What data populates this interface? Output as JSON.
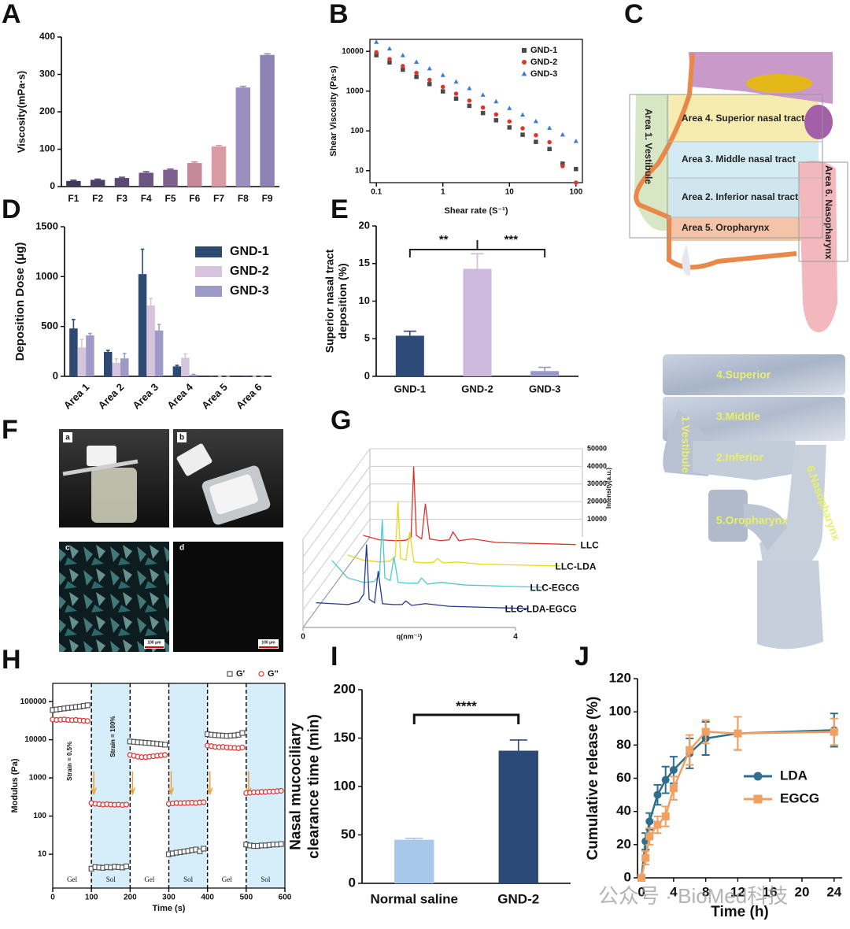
{
  "chart_data": [
    {
      "panel": "A",
      "type": "bar",
      "y_label": "Viscosity(mPa·s)",
      "categories": [
        "F1",
        "F2",
        "F3",
        "F4",
        "F5",
        "F6",
        "F7",
        "F8",
        "F9"
      ],
      "values": [
        15,
        18,
        23,
        37,
        45,
        63,
        107,
        265,
        352
      ],
      "errors": [
        2,
        2,
        2,
        3,
        2,
        3,
        3,
        3,
        3
      ],
      "colors": [
        "#3d3a5c",
        "#4b4068",
        "#5b4a74",
        "#6b5383",
        "#7f5f8e",
        "#c4889a",
        "#d99ba4",
        "#9a8fbf",
        "#8e84b4"
      ],
      "ylim": [
        0,
        400
      ],
      "yticks": [
        0,
        100,
        200,
        300,
        400
      ]
    },
    {
      "panel": "B",
      "type": "scatter",
      "x_label": "Shear rate (S⁻¹)",
      "y_label": "Shear Viscosity (Pa·s)",
      "log_x": true,
      "log_y": true,
      "xlim": [
        0.08,
        125
      ],
      "xticks": [
        0.1,
        1,
        10,
        100
      ],
      "ylim": [
        5,
        20000
      ],
      "yticks": [
        10,
        100,
        1000,
        10000
      ],
      "legend": "upper right",
      "x": [
        0.1,
        0.158,
        0.25,
        0.4,
        0.63,
        1,
        1.58,
        2.5,
        4,
        6.3,
        10,
        15.8,
        25,
        40,
        63,
        100
      ],
      "series": [
        {
          "name": "GND-1",
          "color": "#4a4a4a",
          "marker": "square",
          "filled": true,
          "values": [
            8000,
            5260,
            3460,
            2280,
            1500,
            985,
            648,
            427,
            281,
            185,
            122,
            80,
            53,
            35,
            15,
            11
          ]
        },
        {
          "name": "GND-2",
          "color": "#e0352b",
          "marker": "circle",
          "filled": true,
          "values": [
            9500,
            6370,
            4270,
            2860,
            1910,
            1280,
            860,
            576,
            386,
            259,
            173,
            116,
            78,
            52,
            13,
            5
          ]
        },
        {
          "name": "GND-3",
          "color": "#3a7bd5",
          "marker": "triangle",
          "filled": true,
          "values": [
            17000,
            11600,
            7900,
            5390,
            3680,
            2510,
            1710,
            1170,
            797,
            544,
            371,
            253,
            173,
            118,
            80,
            55
          ]
        }
      ]
    },
    {
      "panel": "D",
      "type": "bar",
      "y_label": "Deposition Dose (μg)",
      "categories": [
        "Area 1",
        "Area 2",
        "Area 3",
        "Area 4",
        "Area 5",
        "Area 6"
      ],
      "ylim": [
        0,
        1500
      ],
      "yticks": [
        0,
        500,
        1000,
        1500
      ],
      "legend": "upper right",
      "series": [
        {
          "name": "GND-1",
          "color": "#2d4a73",
          "values": [
            480,
            245,
            1025,
            100,
            0,
            0
          ],
          "errors": [
            90,
            15,
            250,
            10,
            0,
            0
          ]
        },
        {
          "name": "GND-2",
          "color": "#d6c3dc",
          "values": [
            290,
            135,
            710,
            185,
            0,
            0
          ],
          "errors": [
            80,
            40,
            70,
            40,
            0,
            0
          ]
        },
        {
          "name": "GND-3",
          "color": "#9c9ac6",
          "values": [
            410,
            180,
            460,
            15,
            0,
            0
          ],
          "errors": [
            20,
            50,
            60,
            5,
            0,
            0
          ]
        }
      ]
    },
    {
      "panel": "E",
      "type": "bar",
      "y_label": [
        "Superior nasal tract",
        "deposition (%)"
      ],
      "categories": [
        "GND-1",
        "GND-2",
        "GND-3"
      ],
      "values": [
        5.4,
        14.3,
        0.7
      ],
      "errors": [
        0.6,
        2.0,
        0.5
      ],
      "colors": [
        "#2e4a78",
        "#cdb9dd",
        "#9897c7"
      ],
      "ylim": [
        0,
        20
      ],
      "yticks": [
        0,
        5,
        10,
        15,
        20
      ],
      "annotations": [
        "**",
        "***"
      ]
    },
    {
      "panel": "G",
      "type": "waterfall",
      "x_label": "q(nm⁻¹)",
      "z_label": "Intensity(a.u.)",
      "xlim": [
        0,
        4
      ],
      "xticks": [
        0,
        4
      ],
      "ylim": [
        0,
        50000
      ],
      "yticks": [
        10000,
        20000,
        30000,
        40000,
        50000
      ],
      "x": [
        0,
        0.3,
        0.6,
        0.8,
        0.9,
        0.95,
        1.0,
        1.1,
        1.17,
        1.25,
        1.45,
        1.62,
        1.69,
        1.8,
        2.06,
        2.5,
        4.0
      ],
      "series": [
        {
          "name": "LLC",
          "color": "#d9342b",
          "values": [
            6000,
            3500,
            3000,
            3200,
            5000,
            45000,
            6000,
            4000,
            24000,
            4000,
            3000,
            3500,
            8000,
            3000,
            4000,
            2000,
            800
          ]
        },
        {
          "name": "LLC-LDA",
          "color": "#e8d81a",
          "values": [
            7000,
            4000,
            3000,
            3500,
            6000,
            37000,
            5000,
            4000,
            20000,
            3000,
            2500,
            2800,
            5000,
            2500,
            3000,
            1800,
            700
          ]
        },
        {
          "name": "LLC-EGCG",
          "color": "#4fc8d0",
          "values": [
            16000,
            6000,
            3500,
            4000,
            8000,
            39000,
            6000,
            4500,
            18000,
            3500,
            3000,
            3000,
            6000,
            2500,
            3500,
            2000,
            700
          ]
        },
        {
          "name": "LLC-LDA-EGCG",
          "color": "#24388f",
          "values": [
            4000,
            3500,
            3000,
            4500,
            9000,
            37000,
            6000,
            4000,
            22000,
            3500,
            3000,
            3000,
            5000,
            2500,
            3500,
            2000,
            700
          ]
        }
      ]
    },
    {
      "panel": "H",
      "type": "scatter",
      "x_label": "Time (s)",
      "y_label": "Modulus (Pa)",
      "log_y": true,
      "xlim": [
        0,
        600
      ],
      "xticks": [
        0,
        100,
        200,
        300,
        400,
        500,
        600
      ],
      "ylim": [
        1.3,
        300000
      ],
      "yticks": [
        10,
        100,
        1000,
        10000,
        100000
      ],
      "legend": "upper right",
      "annotations": [
        "Strain = 0.5%",
        "Strain = 100%"
      ],
      "phases": [
        {
          "label": "Gel",
          "start": 0,
          "end": 100,
          "color": "#ffffff"
        },
        {
          "label": "Sol",
          "start": 100,
          "end": 200,
          "color": "#d6eefa"
        },
        {
          "label": "Gel",
          "start": 200,
          "end": 300,
          "color": "#ffffff"
        },
        {
          "label": "Sol",
          "start": 300,
          "end": 400,
          "color": "#d6eefa"
        },
        {
          "label": "Gel",
          "start": 400,
          "end": 500,
          "color": "#ffffff"
        },
        {
          "label": "Sol",
          "start": 500,
          "end": 600,
          "color": "#d6eefa"
        }
      ],
      "x": [
        0,
        10,
        20,
        30,
        40,
        50,
        60,
        70,
        80,
        90,
        100,
        110,
        120,
        130,
        140,
        150,
        160,
        170,
        180,
        190,
        200,
        210,
        220,
        230,
        240,
        250,
        260,
        270,
        280,
        290,
        300,
        310,
        320,
        330,
        340,
        350,
        360,
        370,
        380,
        390,
        400,
        410,
        420,
        430,
        440,
        450,
        460,
        470,
        480,
        490,
        500,
        510,
        520,
        530,
        540,
        550,
        560,
        570,
        580,
        590
      ],
      "series": [
        {
          "name": "G'",
          "color": "#555555",
          "marker": "square",
          "filled": false,
          "values": [
            60000,
            62000,
            64000,
            66000,
            68000,
            70000,
            72000,
            74000,
            77000,
            80000,
            4.2,
            4.6,
            4.5,
            4.4,
            4.6,
            4.5,
            4.7,
            4.6,
            4.5,
            4.8,
            9000,
            8800,
            8600,
            8500,
            8300,
            8200,
            8000,
            7800,
            7600,
            7400,
            10,
            10.5,
            11,
            11.3,
            11.8,
            12.2,
            12.8,
            13.3,
            12,
            14,
            14000,
            13500,
            13200,
            13000,
            12800,
            12600,
            12800,
            13000,
            13500,
            15000,
            18,
            17,
            16.5,
            16.5,
            17,
            17,
            17.5,
            18,
            18,
            18.5
          ]
        },
        {
          "name": "G''",
          "color": "#e03030",
          "marker": "circle",
          "filled": false,
          "values": [
            34000,
            33000,
            33500,
            34000,
            33000,
            32500,
            33000,
            32000,
            31500,
            31000,
            220,
            210,
            205,
            200,
            205,
            200,
            198,
            200,
            195,
            200,
            4000,
            3800,
            3600,
            3500,
            3500,
            3600,
            3700,
            3800,
            3900,
            4000,
            210,
            215,
            220,
            218,
            220,
            222,
            225,
            220,
            228,
            230,
            7000,
            6800,
            6500,
            6400,
            6500,
            6300,
            6200,
            6100,
            6000,
            6300,
            400,
            410,
            420,
            420,
            430,
            430,
            440,
            440,
            450,
            460
          ]
        }
      ]
    },
    {
      "panel": "I",
      "type": "bar",
      "y_label": [
        "Nasal mucociliary",
        "clearance time (min)"
      ],
      "categories": [
        "Normal saline",
        "GND-2"
      ],
      "values": [
        45,
        137
      ],
      "errors": [
        1.5,
        11
      ],
      "colors": [
        "#a8c8ea",
        "#2c4a78"
      ],
      "ylim": [
        0,
        200
      ],
      "yticks": [
        0,
        50,
        100,
        150,
        200
      ],
      "annotations": [
        "****"
      ]
    },
    {
      "panel": "J",
      "type": "line",
      "x_label": "Time (h)",
      "y_label": "Cumulative release (%)",
      "xlim": [
        -0.5,
        25
      ],
      "xticks": [
        0,
        4,
        8,
        12,
        16,
        20,
        24
      ],
      "ylim": [
        0,
        120
      ],
      "yticks": [
        0,
        20,
        40,
        60,
        80,
        100,
        120
      ],
      "legend": "center right",
      "x": [
        0,
        0.5,
        1,
        2,
        3,
        4,
        6,
        8,
        12,
        24
      ],
      "series": [
        {
          "name": "LDA",
          "color": "#2e6f8e",
          "marker": "circle",
          "values": [
            0,
            22,
            34,
            50,
            59,
            65,
            75,
            84,
            87,
            89
          ],
          "errors": [
            0,
            5,
            5,
            6,
            8,
            8,
            9,
            10,
            10,
            10
          ]
        },
        {
          "name": "EGCG",
          "color": "#f0a060",
          "marker": "square",
          "values": [
            0,
            12,
            25,
            32,
            37,
            54,
            77,
            88,
            87,
            88
          ],
          "errors": [
            0,
            4,
            5,
            5,
            6,
            7,
            9,
            7,
            10,
            8
          ]
        }
      ]
    }
  ],
  "diagram": {
    "panel": "C",
    "labels": [
      "Area 4. Superior nasal tract",
      "Area 3. Middle nasal tract",
      "Area 2. Inferior nasal tract",
      "Area 5. Oropharynx",
      "Area 1. Vestibule",
      "Area 6. Nasopharynx"
    ]
  },
  "model_photo": {
    "labels": [
      "4.Superior",
      "3.Middle",
      "1.Vestibule",
      "2.Inferior",
      "6.Nasopharynx",
      "5.Oropharynx"
    ]
  },
  "photos": {
    "panel": "F",
    "panels": [
      "a",
      "b",
      "c",
      "d"
    ],
    "scale_bar": "100 μm"
  },
  "watermark": "公众号 · BioMed科技"
}
